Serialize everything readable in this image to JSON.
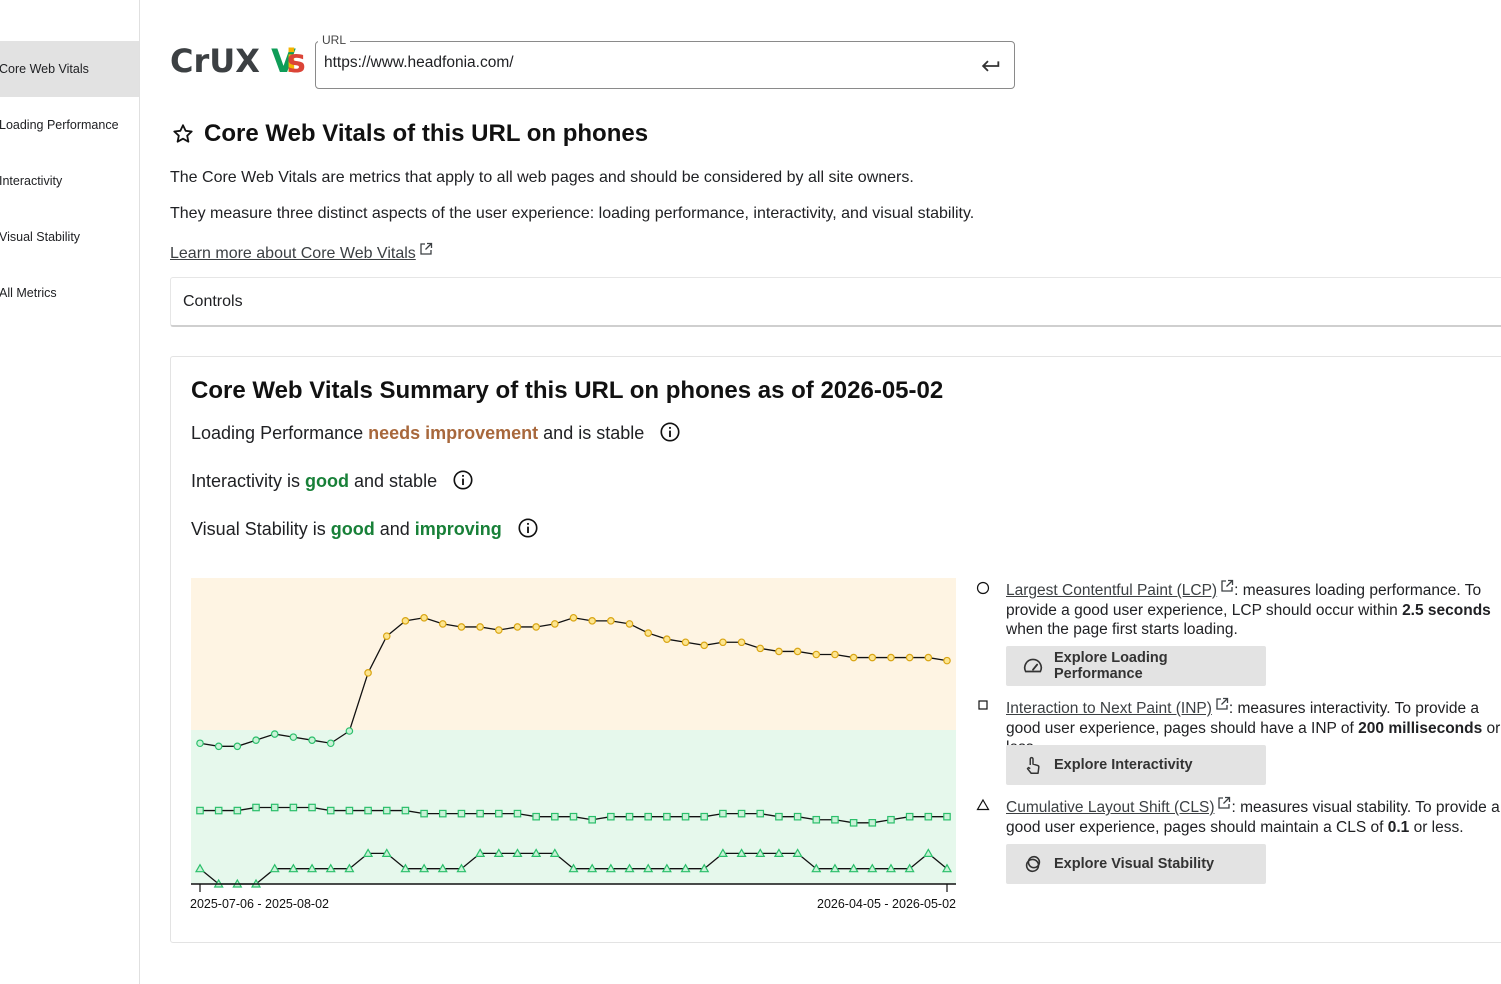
{
  "sidebar": {
    "items": [
      {
        "label": "Core Web Vitals",
        "active": true
      },
      {
        "label": "Loading Performance",
        "active": false
      },
      {
        "label": "Interactivity",
        "active": false
      },
      {
        "label": "Visual Stability",
        "active": false
      },
      {
        "label": "All Metrics",
        "active": false
      }
    ]
  },
  "header": {
    "logo_crux": "CrUX",
    "logo_v": "V",
    "logo_i": "i",
    "logo_s": "s",
    "url_label": "URL",
    "url_value": "https://www.headfonia.com/"
  },
  "intro": {
    "title": "Core Web Vitals of this URL on phones",
    "desc1": "The Core Web Vitals are metrics that apply to all web pages and should be considered by all site owners.",
    "desc2": "They measure three distinct aspects of the user experience: loading performance, interactivity, and visual stability.",
    "learn_more": "Learn more about Core Web Vitals"
  },
  "controls": {
    "label": "Controls"
  },
  "summary": {
    "title": "Core Web Vitals Summary of this URL on phones as of 2026-05-02",
    "lcp": {
      "prefix": "Loading Performance ",
      "status": "needs improvement",
      "suffix": " and is stable"
    },
    "inp": {
      "prefix": "Interactivity is ",
      "status": "good",
      "suffix": " and stable"
    },
    "cls": {
      "prefix": "Visual Stability is ",
      "status": "good",
      "mid": " and ",
      "trend": "improving"
    }
  },
  "colors": {
    "good": "#188038",
    "needs_improvement": "#a8683c",
    "good_band": "#e6f8ec",
    "ni_band": "#fef4e3",
    "good_marker": "#2bbf6b",
    "ni_marker": "#f2c232"
  },
  "chart_data": {
    "type": "line",
    "x_labels": [
      "2025-07-06 - 2025-08-02",
      "2026-04-05 - 2026-05-02"
    ],
    "y_range": [
      0,
      1
    ],
    "note_values": "normalized 0-1 chart position; 0.5 = good/needs-improvement threshold",
    "threshold": 0.5,
    "series": [
      {
        "name": "Largest Contentful Paint (LCP)",
        "marker": "circle",
        "values": [
          0.46,
          0.45,
          0.45,
          0.47,
          0.49,
          0.48,
          0.47,
          0.46,
          0.5,
          0.69,
          0.81,
          0.86,
          0.87,
          0.85,
          0.84,
          0.84,
          0.83,
          0.84,
          0.84,
          0.85,
          0.87,
          0.86,
          0.86,
          0.85,
          0.82,
          0.8,
          0.79,
          0.78,
          0.79,
          0.79,
          0.77,
          0.76,
          0.76,
          0.75,
          0.75,
          0.74,
          0.74,
          0.74,
          0.74,
          0.74,
          0.73
        ]
      },
      {
        "name": "Interaction to Next Paint (INP)",
        "marker": "square",
        "values": [
          0.24,
          0.24,
          0.24,
          0.25,
          0.25,
          0.25,
          0.25,
          0.24,
          0.24,
          0.24,
          0.24,
          0.24,
          0.23,
          0.23,
          0.23,
          0.23,
          0.23,
          0.23,
          0.22,
          0.22,
          0.22,
          0.21,
          0.22,
          0.22,
          0.22,
          0.22,
          0.22,
          0.22,
          0.23,
          0.23,
          0.23,
          0.22,
          0.22,
          0.21,
          0.21,
          0.2,
          0.2,
          0.21,
          0.22,
          0.22,
          0.22
        ]
      },
      {
        "name": "Cumulative Layout Shift (CLS)",
        "marker": "triangle",
        "values": [
          0.05,
          0.0,
          0.0,
          0.0,
          0.05,
          0.05,
          0.05,
          0.05,
          0.05,
          0.1,
          0.1,
          0.05,
          0.05,
          0.05,
          0.05,
          0.1,
          0.1,
          0.1,
          0.1,
          0.1,
          0.05,
          0.05,
          0.05,
          0.05,
          0.05,
          0.05,
          0.05,
          0.05,
          0.1,
          0.1,
          0.1,
          0.1,
          0.1,
          0.05,
          0.05,
          0.05,
          0.05,
          0.05,
          0.05,
          0.1,
          0.05
        ]
      }
    ]
  },
  "metrics": [
    {
      "link": "Largest Contentful Paint (LCP)",
      "pre": ": measures loading performance. To provide a good user experience, LCP should occur within ",
      "bold": "2.5 seconds",
      "post": " when the page first starts loading.",
      "button": "Explore Loading Performance",
      "button_icon": "speedometer-icon",
      "marker": "circle"
    },
    {
      "link": "Interaction to Next Paint (INP)",
      "pre": ": measures interactivity. To provide a good user experience, pages should have a INP of ",
      "bold": "200 milliseconds",
      "post": " or less.",
      "button": "Explore Interactivity",
      "button_icon": "touch-icon",
      "marker": "square"
    },
    {
      "link": "Cumulative Layout Shift (CLS)",
      "pre": ": measures visual stability. To provide a good user experience, pages should maintain a CLS of ",
      "bold": "0.1",
      "post": " or less.",
      "button": "Explore Visual Stability",
      "button_icon": "stability-icon",
      "marker": "triangle"
    }
  ]
}
